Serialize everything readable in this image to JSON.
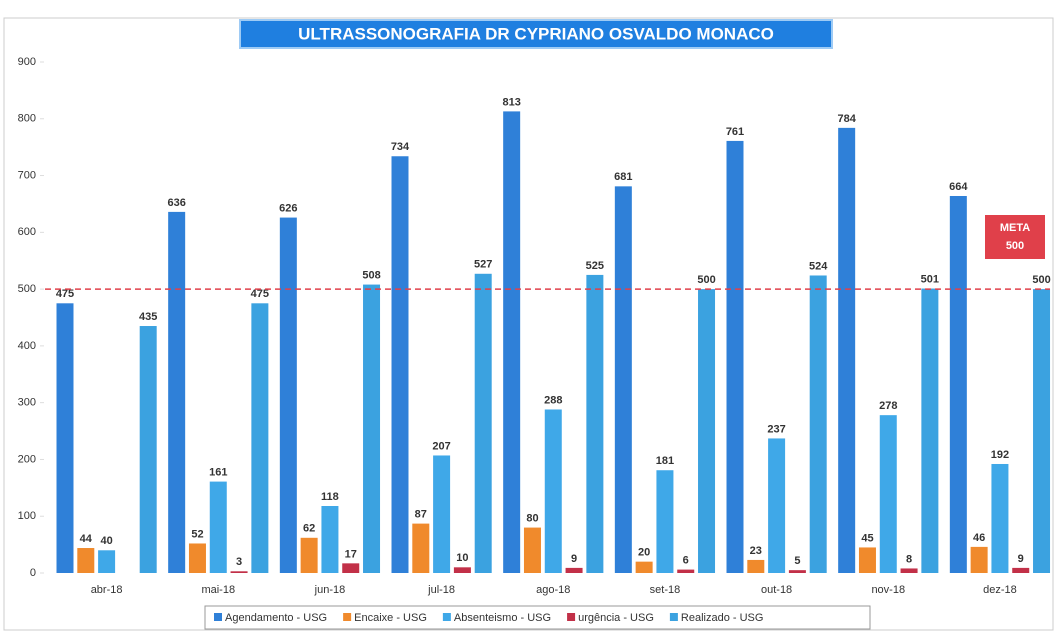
{
  "chart_data": {
    "type": "bar",
    "title": "ULTRASSONOGRAFIA DR CYPRIANO OSVALDO MONACO",
    "categories": [
      "abr-18",
      "mai-18",
      "jun-18",
      "jul-18",
      "ago-18",
      "set-18",
      "out-18",
      "nov-18",
      "dez-18"
    ],
    "series": [
      {
        "name": "Agendamento - USG",
        "color": "#2f80d8",
        "values": [
          475,
          636,
          626,
          734,
          813,
          681,
          761,
          784,
          664
        ]
      },
      {
        "name": "Encaixe - USG",
        "color": "#f08a2c",
        "values": [
          44,
          52,
          62,
          87,
          80,
          20,
          23,
          45,
          46
        ]
      },
      {
        "name": "Absenteismo - USG",
        "color": "#3fa8e8",
        "values": [
          40,
          161,
          118,
          207,
          288,
          181,
          237,
          278,
          192
        ]
      },
      {
        "name": "urgência - USG",
        "color": "#c23048",
        "values": [
          null,
          3,
          17,
          10,
          9,
          6,
          5,
          8,
          9
        ]
      },
      {
        "name": "Realizado - USG",
        "color": "#3ba2e0",
        "values": [
          435,
          475,
          508,
          527,
          525,
          500,
          524,
          501,
          500
        ]
      }
    ],
    "target": {
      "label": "META",
      "value": 500,
      "color": "#e0404a"
    },
    "ylim": [
      0,
      900
    ],
    "yticks": [
      0,
      100,
      200,
      300,
      400,
      500,
      600,
      700,
      800,
      900
    ],
    "grid": false,
    "legend": "bottom"
  }
}
